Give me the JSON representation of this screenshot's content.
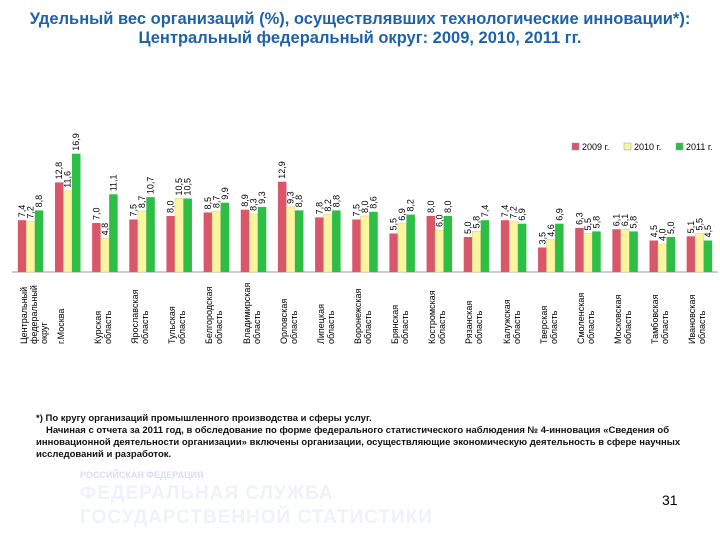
{
  "chart_data": {
    "type": "bar",
    "title": "Удельный вес организаций (%), осуществлявших технологические инновации*): Центральный федеральный округ: 2009, 2010, 2011 гг.",
    "categories": [
      "Центральный федеральный округ",
      "г.Москва",
      "Курская область",
      "Ярославская область",
      "Тульская область",
      "Белгородская область",
      "Владимирская область",
      "Орловская область",
      "Липецкая область",
      "Воронежская область",
      "Брянская область",
      "Костромская область",
      "Рязанская область",
      "Калужская область",
      "Тверская область",
      "Смоленская область",
      "Московская область",
      "Тамбовская область",
      "Ивановская область"
    ],
    "series": [
      {
        "name": "2009 г.",
        "color": "#d9566b",
        "values": [
          7.4,
          12.8,
          7.0,
          7.5,
          8.0,
          8.5,
          8.9,
          12.9,
          7.8,
          7.5,
          5.5,
          8.0,
          5.0,
          7.4,
          3.5,
          6.3,
          6.1,
          4.5,
          5.1
        ],
        "value_labels": [
          "7,4",
          "12,8",
          "7,0",
          "7,5",
          "8,0",
          "8,5",
          "8,9",
          "12,9",
          "7,8",
          "7,5",
          "5,5",
          "8,0",
          "5,0",
          "7,4",
          "3,5",
          "6,3",
          "6,1",
          "4,5",
          "5,1"
        ]
      },
      {
        "name": "2010 г.",
        "color": "#fbf4a0",
        "values": [
          7.2,
          11.6,
          4.8,
          8.7,
          10.5,
          8.7,
          8.3,
          9.3,
          8.2,
          8.0,
          6.9,
          6.0,
          5.8,
          7.2,
          4.6,
          5.5,
          6.1,
          4.0,
          5.5
        ],
        "value_labels": [
          "7,2",
          "11,6",
          "4,8",
          "8,7",
          "10,5",
          "8,7",
          "8,3",
          "9,3",
          "8,2",
          "8,0",
          "6,9",
          "6,0",
          "5,8",
          "7,2",
          "4,6",
          "5,5",
          "6,1",
          "4,0",
          "5,5"
        ]
      },
      {
        "name": "2011 г.",
        "color": "#2dbf45",
        "values": [
          8.8,
          16.9,
          11.1,
          10.7,
          10.5,
          9.9,
          9.3,
          8.8,
          8.8,
          8.6,
          8.2,
          8.0,
          7.4,
          6.9,
          6.9,
          5.8,
          5.8,
          5.0,
          4.5
        ],
        "value_labels": [
          "8,8",
          "16,9",
          "11,1",
          "10,7",
          "10,5",
          "9,9",
          "9,3",
          "8,8",
          "8,8",
          "8,6",
          "8,2",
          "8,0",
          "7,4",
          "6,9",
          "6,9",
          "5,8",
          "5,8",
          "5,0",
          "4,5"
        ]
      }
    ],
    "ylim": [
      0,
      20
    ],
    "legend": "top-right"
  },
  "footnote": [
    "*) По кругу организаций промышленного производства и сферы услуг.",
    "Начиная с отчета за 2011 год, в обследование по форме федерального статистического наблюдения № 4-инновация «Сведения об инновационной деятельности организации» включены организации, осуществляющие экономическую деятельность в сфере научных исследований и разработок."
  ],
  "banner": {
    "country": "РОССИЙСКАЯ ФЕДЕРАЦИЯ",
    "line1": "ФЕДЕРАЛЬНАЯ СЛУЖБА",
    "line2": "ГОСУДАРСТВЕННОЙ СТАТИСТИКИ"
  },
  "page_number": "31"
}
